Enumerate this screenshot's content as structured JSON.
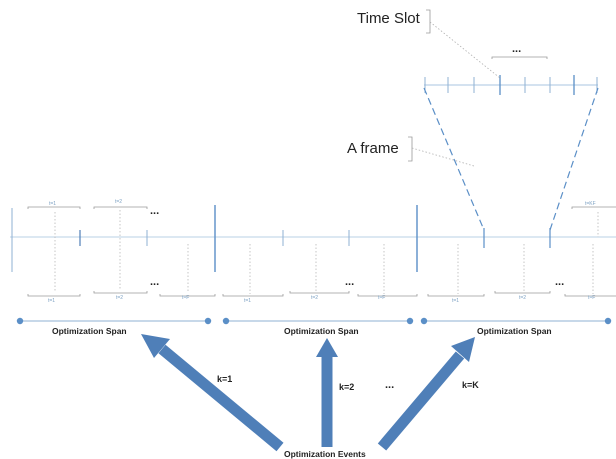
{
  "labels": {
    "time_slot": "Time Slot",
    "a_frame": "A frame",
    "ellipsis": "...",
    "events": "Optimization Events",
    "k1": "k=1",
    "k2": "k=2",
    "kK": "k=K"
  },
  "spans": [
    {
      "label": "Optimization Span"
    },
    {
      "label": "Optimization Span"
    },
    {
      "label": "Optimization Span"
    }
  ],
  "slot_labels": {
    "t1": "t=1",
    "t2": "t=2",
    "tF": "t=F",
    "tKF": "t=KF"
  },
  "colors": {
    "line": "#a9c6e2",
    "accent": "#5b8fc7",
    "arrow": "#4f7fb8",
    "text": "#222222"
  }
}
